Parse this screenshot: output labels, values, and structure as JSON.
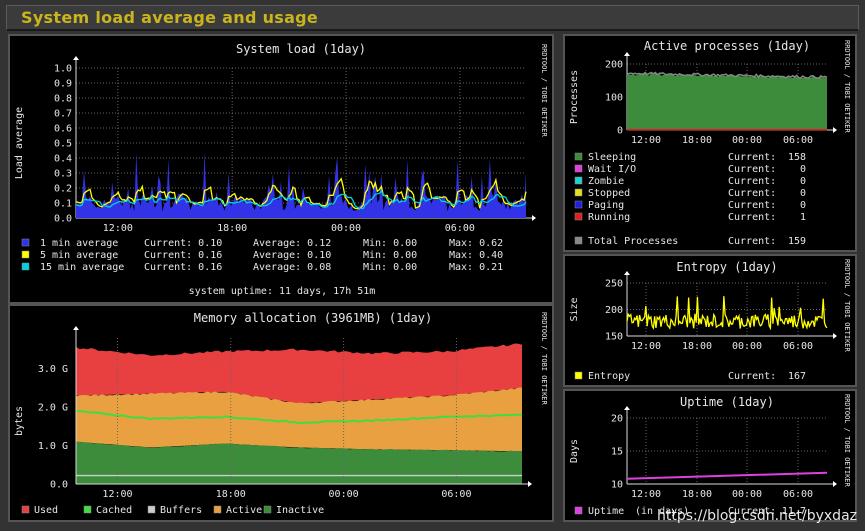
{
  "page_title": "System load average and usage",
  "watermark": "https://blog.csdn.net/byxdaz",
  "colors": {
    "bg": "#000000",
    "grid": "#6b6b6b",
    "text": "#e6e6e6",
    "accent": "#c9b51c"
  },
  "chart_data": [
    {
      "id": "load",
      "type": "area",
      "title": "System load  (1day)",
      "side_label": "RRDTOOL / TOBI OETIKER",
      "ylabel": "Load average",
      "xlabel": "",
      "ylim": [
        0,
        1.0
      ],
      "yticks": [
        "0.0",
        "0.1",
        "0.2",
        "0.3",
        "0.4",
        "0.5",
        "0.6",
        "0.7",
        "0.8",
        "0.9",
        "1.0"
      ],
      "xticks": [
        "12:00",
        "18:00",
        "00:00",
        "06:00"
      ],
      "series": [
        {
          "name": "1 min average",
          "color": "#3232e6",
          "current": "Current: 0.10",
          "average": "Average: 0.12",
          "min": "Min: 0.00",
          "max": "Max: 0.62"
        },
        {
          "name": "5 min average",
          "color": "#ffff00",
          "current": "Current: 0.16",
          "average": "Average: 0.10",
          "min": "Min: 0.00",
          "max": "Max: 0.40"
        },
        {
          "name": "15 min average",
          "color": "#00d0e0",
          "current": "Current: 0.16",
          "average": "Average: 0.08",
          "min": "Min: 0.00",
          "max": "Max: 0.21"
        }
      ],
      "footer": "system uptime: 11 days, 17h 51m"
    },
    {
      "id": "memory",
      "type": "area",
      "title": "Memory allocation (3961MB)  (1day)",
      "side_label": "RRDTOOL / TOBI OETIKER",
      "ylabel": "bytes",
      "xlabel": "",
      "ylim": [
        0,
        3.8
      ],
      "yticks": [
        "0.0",
        "1.0 G",
        "2.0 G",
        "3.0 G"
      ],
      "xticks": [
        "12:00",
        "18:00",
        "00:00",
        "06:00"
      ],
      "series": [
        {
          "name": "Used",
          "color": "#e84040"
        },
        {
          "name": "Cached",
          "color": "#40dd40"
        },
        {
          "name": "Buffers",
          "color": "#cccccc"
        },
        {
          "name": "Active",
          "color": "#e8a040"
        },
        {
          "name": "Inactive",
          "color": "#3c8c3c"
        }
      ],
      "approx_values_G": {
        "used_top": [
          3.55,
          3.35,
          3.45,
          3.5,
          3.4,
          3.45,
          3.65
        ],
        "active_top": [
          2.3,
          2.35,
          2.4,
          2.1,
          2.2,
          2.3,
          2.5
        ],
        "cached_line": [
          1.9,
          1.7,
          1.75,
          1.6,
          1.65,
          1.75,
          1.8
        ],
        "inactive_top": [
          1.1,
          0.95,
          1.05,
          0.95,
          0.9,
          0.88,
          0.85
        ],
        "buffers_line": [
          0.22,
          0.22,
          0.22,
          0.22,
          0.22,
          0.22,
          0.22
        ]
      }
    },
    {
      "id": "processes",
      "type": "area",
      "title": "Active processes  (1day)",
      "side_label": "RRDTOOL / TOBI OETIKER",
      "ylabel": "Processes",
      "xlabel": "",
      "ylim": [
        0,
        200
      ],
      "yticks": [
        "0",
        "100",
        "200"
      ],
      "xticks": [
        "12:00",
        "18:00",
        "00:00",
        "06:00"
      ],
      "series": [
        {
          "name": "Sleeping",
          "color": "#3c8c3c",
          "current": "Current:",
          "value": "158"
        },
        {
          "name": "Wait I/O",
          "color": "#e040e0",
          "current": "Current:",
          "value": "0"
        },
        {
          "name": "Zombie",
          "color": "#20d0d0",
          "current": "Current:",
          "value": "0"
        },
        {
          "name": "Stopped",
          "color": "#e0e020",
          "current": "Current:",
          "value": "0"
        },
        {
          "name": "Paging",
          "color": "#2020e0",
          "current": "Current:",
          "value": "0"
        },
        {
          "name": "Running",
          "color": "#e02020",
          "current": "Current:",
          "value": "1"
        }
      ],
      "total": {
        "name": "Total Processes",
        "color": "#888888",
        "current": "Current:",
        "value": "159"
      }
    },
    {
      "id": "entropy",
      "type": "line",
      "title": "Entropy  (1day)",
      "side_label": "RRDTOOL / TOBI OETIKER",
      "ylabel": "Size",
      "xlabel": "",
      "ylim": [
        150,
        250
      ],
      "yticks": [
        "150",
        "200",
        "250"
      ],
      "xticks": [
        "12:00",
        "18:00",
        "00:00",
        "06:00"
      ],
      "series": [
        {
          "name": "Entropy",
          "color": "#ffff00",
          "current": "Current:",
          "value": "167"
        }
      ]
    },
    {
      "id": "uptime",
      "type": "line",
      "title": "Uptime  (1day)",
      "side_label": "RRDTOOL / TOBI OETIKER",
      "ylabel": "Days",
      "xlabel": "",
      "ylim": [
        10,
        20
      ],
      "yticks": [
        "10",
        "15",
        "20"
      ],
      "xticks": [
        "12:00",
        "18:00",
        "00:00",
        "06:00"
      ],
      "series": [
        {
          "name": "Uptime",
          "note": "(in days)",
          "color": "#e040e0",
          "current": "Current:",
          "value": "11.7"
        }
      ]
    }
  ]
}
